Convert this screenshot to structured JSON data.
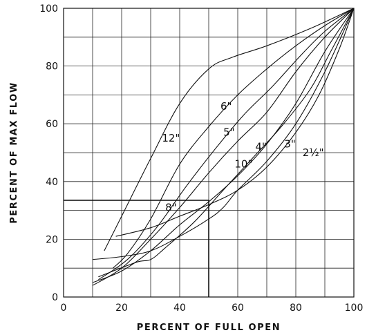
{
  "chart_data": {
    "type": "line",
    "title": "",
    "xlabel": "PERCENT OF FULL OPEN",
    "ylabel": "PERCENT OF MAX FLOW",
    "xlim": [
      0,
      100
    ],
    "ylim": [
      0,
      100
    ],
    "x_ticks": [
      "0",
      "20",
      "40",
      "60",
      "80",
      "100"
    ],
    "y_ticks": [
      "0",
      "20",
      "40",
      "60",
      "80",
      "100"
    ],
    "grid": true,
    "series": [
      {
        "name": "12\"",
        "label_at": [
          37,
          55
        ],
        "points": [
          [
            14,
            16
          ],
          [
            20,
            28
          ],
          [
            30,
            48
          ],
          [
            40,
            67
          ],
          [
            50,
            79
          ],
          [
            58,
            83
          ],
          [
            70,
            87
          ],
          [
            85,
            93
          ],
          [
            100,
            100
          ]
        ]
      },
      {
        "name": "6\"",
        "label_at": [
          56,
          66
        ],
        "points": [
          [
            17,
            10
          ],
          [
            22,
            15
          ],
          [
            30,
            27
          ],
          [
            40,
            46
          ],
          [
            50,
            59
          ],
          [
            60,
            70
          ],
          [
            70,
            79
          ],
          [
            80,
            87
          ],
          [
            90,
            94
          ],
          [
            100,
            100
          ]
        ]
      },
      {
        "name": "5\"",
        "label_at": [
          57,
          57
        ],
        "points": [
          [
            12,
            6
          ],
          [
            22,
            13
          ],
          [
            32,
            24
          ],
          [
            42,
            38
          ],
          [
            52,
            51
          ],
          [
            62,
            63
          ],
          [
            72,
            73
          ],
          [
            82,
            84
          ],
          [
            90,
            92
          ],
          [
            100,
            100
          ]
        ]
      },
      {
        "name": "4\"",
        "label_at": [
          68,
          52
        ],
        "points": [
          [
            10,
            4
          ],
          [
            20,
            10
          ],
          [
            30,
            20
          ],
          [
            40,
            31
          ],
          [
            50,
            43
          ],
          [
            60,
            54
          ],
          [
            70,
            64
          ],
          [
            80,
            78
          ],
          [
            90,
            90
          ],
          [
            100,
            100
          ]
        ]
      },
      {
        "name": "3\"",
        "label_at": [
          78,
          53
        ],
        "points": [
          [
            10,
            5
          ],
          [
            20,
            9
          ],
          [
            30,
            16
          ],
          [
            40,
            25
          ],
          [
            50,
            33
          ],
          [
            60,
            42
          ],
          [
            70,
            53
          ],
          [
            80,
            67
          ],
          [
            90,
            85
          ],
          [
            100,
            100
          ]
        ]
      },
      {
        "name": "2½\"",
        "label_at": [
          86,
          50
        ],
        "points": [
          [
            18,
            21
          ],
          [
            30,
            24
          ],
          [
            40,
            28
          ],
          [
            50,
            32
          ],
          [
            60,
            37
          ],
          [
            70,
            45
          ],
          [
            80,
            57
          ],
          [
            88,
            70
          ],
          [
            95,
            86
          ],
          [
            100,
            100
          ]
        ]
      },
      {
        "name": "10\"",
        "label_at": [
          62,
          46
        ],
        "points": [
          [
            12,
            7
          ],
          [
            25,
            12
          ],
          [
            30,
            13
          ],
          [
            35,
            17
          ],
          [
            45,
            26
          ],
          [
            55,
            37
          ],
          [
            65,
            48
          ],
          [
            75,
            59
          ],
          [
            85,
            72
          ],
          [
            92,
            85
          ],
          [
            100,
            100
          ]
        ]
      },
      {
        "name": "8\"",
        "label_at": [
          37,
          31
        ],
        "points": [
          [
            10,
            13
          ],
          [
            20,
            14
          ],
          [
            30,
            16
          ],
          [
            40,
            21
          ],
          [
            50,
            27
          ],
          [
            55,
            31
          ],
          [
            60,
            37
          ],
          [
            70,
            47
          ],
          [
            80,
            60
          ],
          [
            90,
            78
          ],
          [
            100,
            100
          ]
        ]
      }
    ],
    "reference_line": {
      "x": 50,
      "y": 33.5
    }
  }
}
